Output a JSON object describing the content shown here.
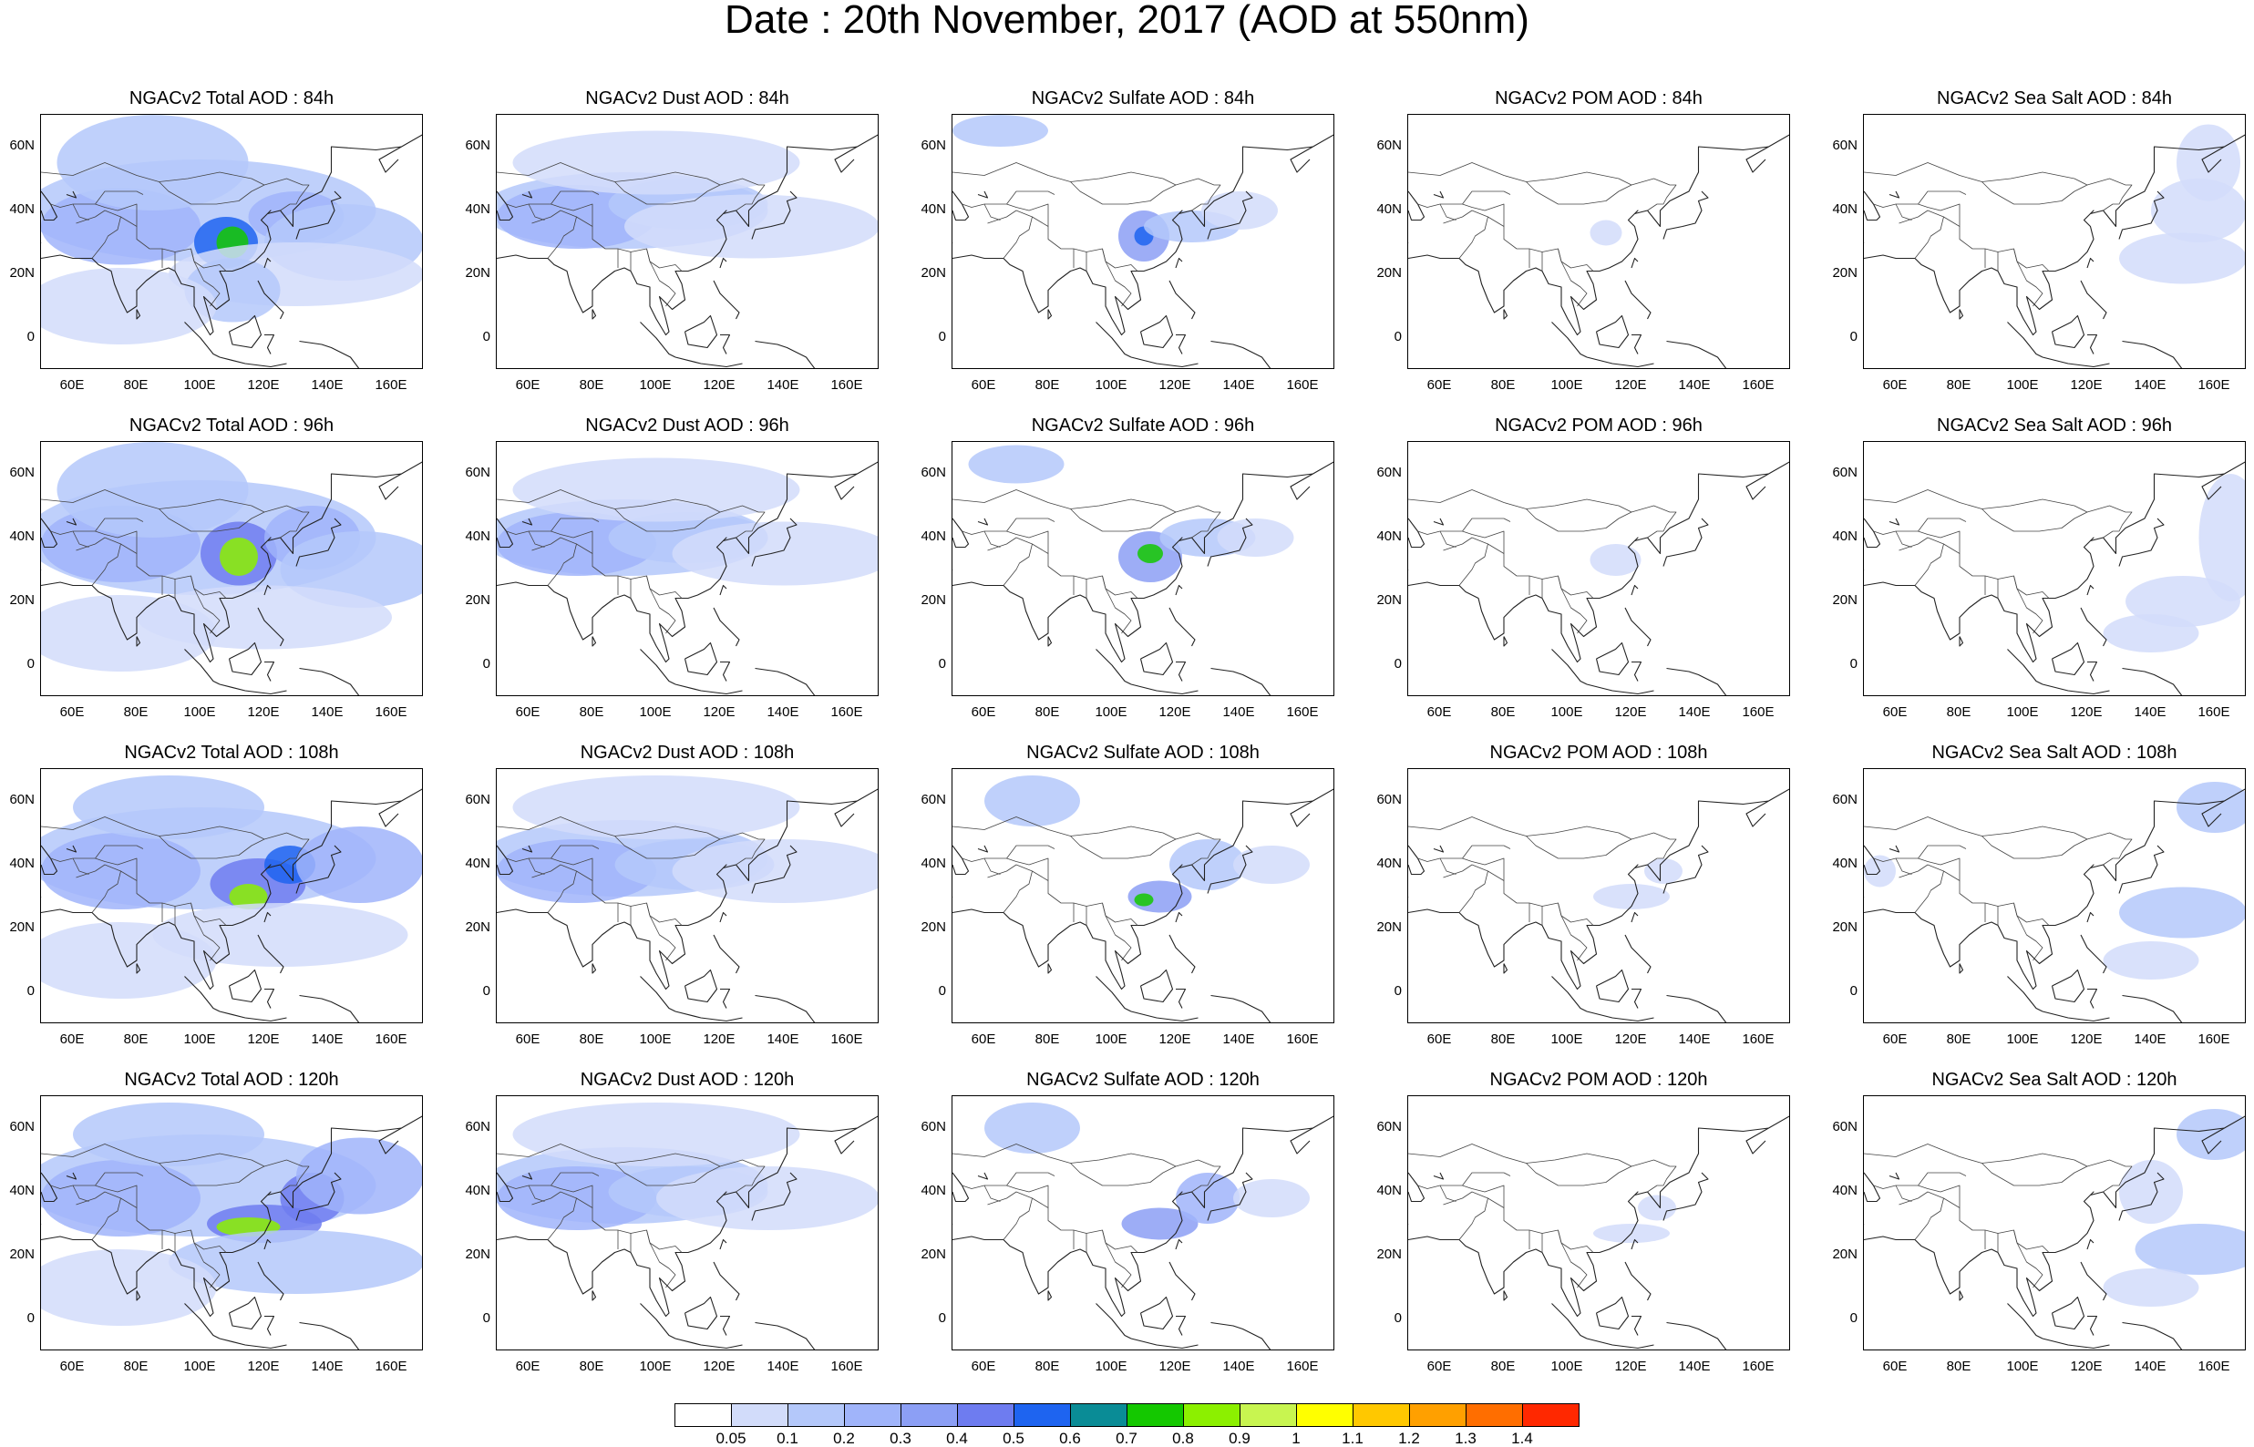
{
  "title": "Date : 20th November, 2017 (AOD at 550nm)",
  "lat_ticks": [
    "60N",
    "40N",
    "20N",
    "0"
  ],
  "lon_ticks": [
    "60E",
    "80E",
    "100E",
    "120E",
    "140E",
    "160E"
  ],
  "rows": [
    {
      "lead": "84h",
      "panels": [
        {
          "title": "NGACv2 Total AOD : 84h",
          "species": "total"
        },
        {
          "title": "NGACv2 Dust AOD : 84h",
          "species": "dust"
        },
        {
          "title": "NGACv2 Sulfate AOD : 84h",
          "species": "sulfate"
        },
        {
          "title": "NGACv2 POM AOD : 84h",
          "species": "pom"
        },
        {
          "title": "NGACv2 Sea Salt AOD : 84h",
          "species": "seasalt"
        }
      ]
    },
    {
      "lead": "96h",
      "panels": [
        {
          "title": "NGACv2 Total AOD : 96h",
          "species": "total"
        },
        {
          "title": "NGACv2 Dust AOD : 96h",
          "species": "dust"
        },
        {
          "title": "NGACv2 Sulfate AOD : 96h",
          "species": "sulfate"
        },
        {
          "title": "NGACv2 POM AOD : 96h",
          "species": "pom"
        },
        {
          "title": "NGACv2 Sea Salt AOD : 96h",
          "species": "seasalt"
        }
      ]
    },
    {
      "lead": "108h",
      "panels": [
        {
          "title": "NGACv2 Total AOD : 108h",
          "species": "total"
        },
        {
          "title": "NGACv2 Dust AOD : 108h",
          "species": "dust"
        },
        {
          "title": "NGACv2 Sulfate AOD : 108h",
          "species": "sulfate"
        },
        {
          "title": "NGACv2 POM AOD : 108h",
          "species": "pom"
        },
        {
          "title": "NGACv2 Sea Salt AOD : 108h",
          "species": "seasalt"
        }
      ]
    },
    {
      "lead": "120h",
      "panels": [
        {
          "title": "NGACv2 Total AOD : 120h",
          "species": "total"
        },
        {
          "title": "NGACv2 Dust AOD : 120h",
          "species": "dust"
        },
        {
          "title": "NGACv2 Sulfate AOD : 120h",
          "species": "sulfate"
        },
        {
          "title": "NGACv2 POM AOD : 120h",
          "species": "pom"
        },
        {
          "title": "NGACv2 Sea Salt  AOD : 120h",
          "species": "seasalt"
        }
      ]
    }
  ],
  "colorbar": {
    "labels": [
      "0.05",
      "0.1",
      "0.2",
      "0.3",
      "0.4",
      "0.5",
      "0.6",
      "0.7",
      "0.8",
      "0.9",
      "1",
      "1.1",
      "1.2",
      "1.3",
      "1.4"
    ],
    "colors": [
      "#ffffff",
      "#d2dcfa",
      "#b4c8fa",
      "#a0b4fa",
      "#8c9ff5",
      "#6e7cf0",
      "#1e64f0",
      "#0a8c96",
      "#14c800",
      "#8cf000",
      "#c8f550",
      "#ffff00",
      "#ffc800",
      "#ffa000",
      "#ff6e00",
      "#ff2800"
    ]
  }
}
